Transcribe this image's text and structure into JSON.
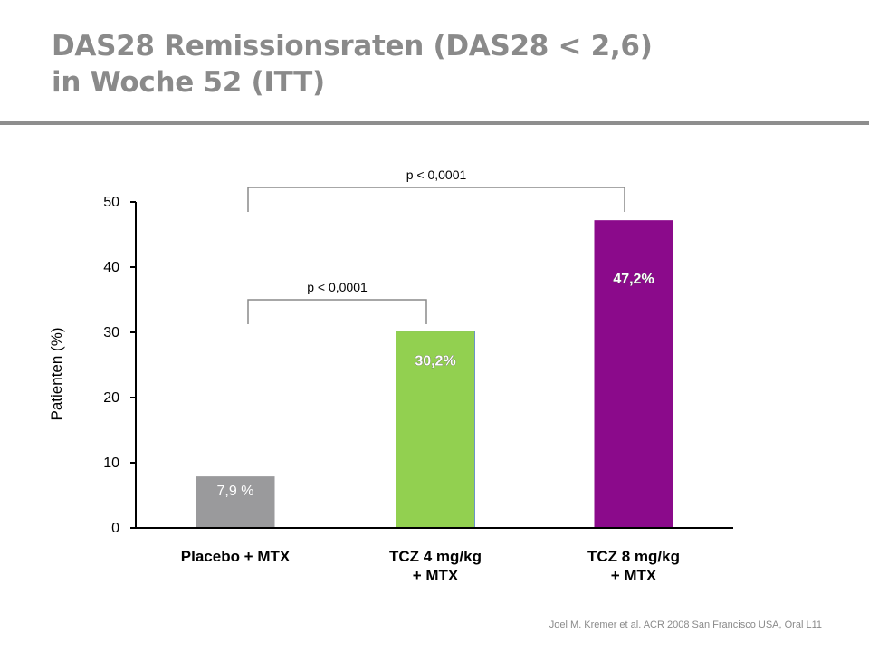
{
  "title": {
    "line1": "DAS28 Remissionsraten (DAS28 < 2,6)",
    "line2": "in Woche 52 (ITT)"
  },
  "source": "Joel M. Kremer et al. ACR 2008 San Francisco USA, Oral L11",
  "chart_data": {
    "type": "bar",
    "categories": [
      [
        "Placebo + MTX"
      ],
      [
        "TCZ 4 mg/kg",
        "+ MTX"
      ],
      [
        "TCZ 8 mg/kg",
        "+ MTX"
      ]
    ],
    "values": [
      7.9,
      30.2,
      47.2
    ],
    "data_labels": [
      "7,9 %",
      "30,2%",
      "47,2%"
    ],
    "colors": [
      "#9a9a9c",
      "#92d050",
      "#8b0a8b"
    ],
    "label_colors": [
      "#ffffff",
      "#ffffff",
      "#ffffff"
    ],
    "ylabel": "Patienten (%)",
    "xlabel": "",
    "ylim": [
      0,
      50
    ],
    "yticks": [
      0,
      10,
      20,
      30,
      40,
      50
    ],
    "grid": false,
    "annotations": [
      {
        "text": "p < 0,0001",
        "from": 0,
        "to": 1
      },
      {
        "text": "p < 0,0001",
        "from": 0,
        "to": 2
      }
    ]
  }
}
